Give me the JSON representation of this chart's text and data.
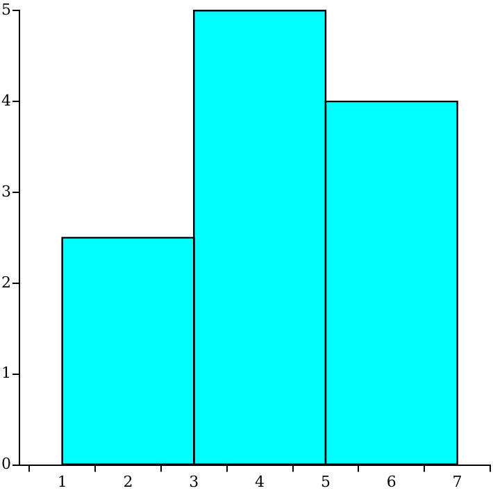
{
  "chart_data": {
    "type": "histogram",
    "bins": [
      1,
      3,
      5,
      7
    ],
    "values": [
      2.5,
      5,
      4
    ],
    "color": "#00ffff",
    "xlim": [
      0.35,
      7.5
    ],
    "xticks": [
      1,
      2,
      3,
      4,
      5,
      6,
      7
    ],
    "ylim": [
      0,
      5
    ],
    "yticks": [
      0,
      1,
      2,
      3,
      4,
      5
    ],
    "grid": false,
    "legend": false
  }
}
